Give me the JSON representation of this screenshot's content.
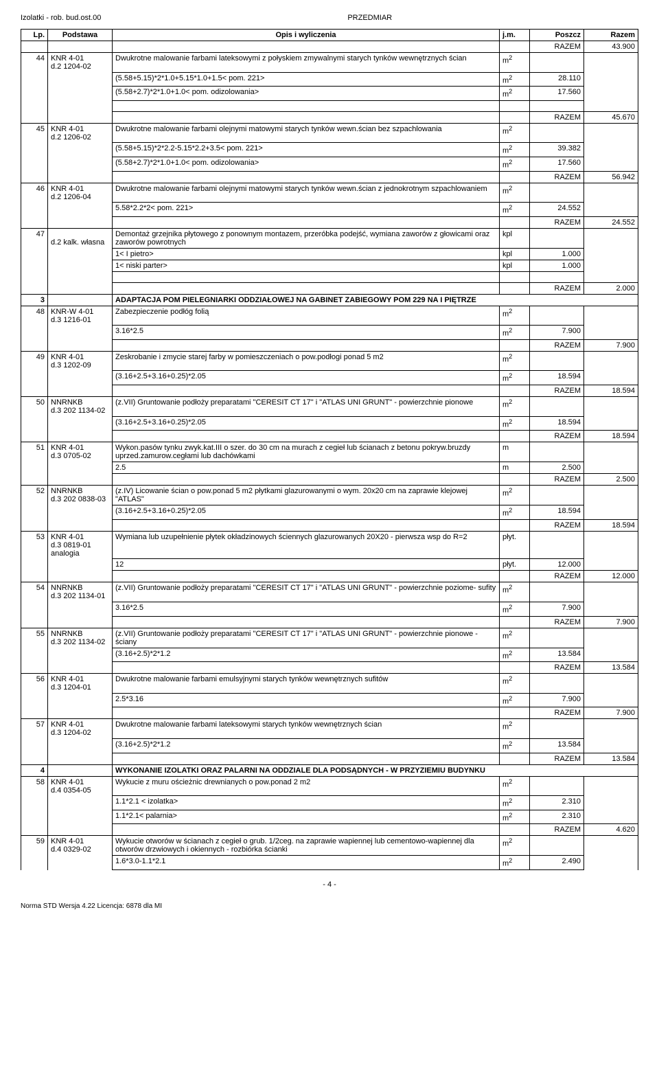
{
  "doc_header_left": "Izolatki - rob. bud.ost.00",
  "doc_header_center": "PRZEDMIAR",
  "columns": {
    "lp": "Lp.",
    "podstawa": "Podstawa",
    "opis": "Opis i wyliczenia",
    "jm": "j.m.",
    "poszcz": "Poszcz",
    "razem": "Razem"
  },
  "razem_label": "RAZEM",
  "rows": [
    {
      "type": "razem",
      "value": "43.900"
    },
    {
      "type": "item",
      "lp": "44",
      "pod1": "KNR 4-01",
      "pod2": "d.2 1204-02",
      "opis": "Dwukrotne malowanie farbami lateksowymi z połyskiem zmywalnymi starych tynków wewnętrznych ścian",
      "jm": "m2",
      "poszcz": ""
    },
    {
      "type": "calc",
      "opis": "(5.58+5.15)*2*1.0+5.15*1.0+1.5< pom. 221>",
      "jm": "m2",
      "poszcz": "28.110"
    },
    {
      "type": "calc",
      "opis": "(5.58+2.7)*2*1.0+1.0< pom. odizolowania>",
      "jm": "m2",
      "poszcz": "17.560"
    },
    {
      "type": "spacer"
    },
    {
      "type": "razem",
      "value": "45.670"
    },
    {
      "type": "item",
      "lp": "45",
      "pod1": "KNR 4-01",
      "pod2": "d.2 1206-02",
      "opis": "Dwukrotne malowanie farbami olejnymi  matowymi starych tynków wewn.ścian bez szpachlowania",
      "jm": "m2",
      "poszcz": ""
    },
    {
      "type": "calc",
      "opis": "(5.58+5.15)*2*2.2-5.15*2.2+3.5< pom. 221>",
      "jm": "m2",
      "poszcz": "39.382"
    },
    {
      "type": "calc",
      "opis": "(5.58+2.7)*2*1.0+1.0< pom. odizolowania>",
      "jm": "m2",
      "poszcz": "17.560"
    },
    {
      "type": "razem",
      "value": "56.942"
    },
    {
      "type": "item",
      "lp": "46",
      "pod1": "KNR 4-01",
      "pod2": "d.2 1206-04",
      "opis": "Dwukrotne malowanie farbami olejnymi matowymi starych tynków wewn.ścian z jednokrotnym szpachlowaniem",
      "jm": "m2",
      "poszcz": ""
    },
    {
      "type": "calc",
      "opis": "5.58*2.2*2< pom. 221>",
      "jm": "m2",
      "poszcz": "24.552"
    },
    {
      "type": "razem",
      "value": "24.552"
    },
    {
      "type": "item",
      "lp": "47",
      "pod1": "",
      "pod2": "d.2 kalk. własna",
      "opis": "Demontaż grzejnika płytowego z ponownym montazem, przeróbka podejść, wymiana zaworów z głowicami oraz zaworów powrotnych",
      "jm": "kpl",
      "poszcz": ""
    },
    {
      "type": "calc",
      "opis": "1< I pietro>",
      "jm": "kpl",
      "poszcz": "1.000"
    },
    {
      "type": "calc",
      "opis": "1< niski parter>",
      "jm": "kpl",
      "poszcz": "1.000"
    },
    {
      "type": "spacer"
    },
    {
      "type": "razem",
      "value": "2.000"
    },
    {
      "type": "section",
      "lp": "3",
      "opis": "ADAPTACJA POM PIELEGNIARKI ODDZIAŁOWEJ NA GABINET ZABIEGOWY POM 229 NA I PIĘTRZE"
    },
    {
      "type": "item",
      "lp": "48",
      "pod1": "KNR-W 4-01",
      "pod2": "d.3 1216-01",
      "opis": "Zabezpieczenie podłóg folią",
      "jm": "m2",
      "poszcz": ""
    },
    {
      "type": "calc",
      "opis": "3.16*2.5",
      "jm": "m2",
      "poszcz": "7.900"
    },
    {
      "type": "razem",
      "value": "7.900"
    },
    {
      "type": "item",
      "lp": "49",
      "pod1": "KNR 4-01",
      "pod2": "d.3 1202-09",
      "opis": "Zeskrobanie i zmycie starej farby w pomieszczeniach o pow.podłogi ponad 5 m2",
      "jm": "m2",
      "poszcz": ""
    },
    {
      "type": "calc",
      "opis": "(3.16+2.5+3.16+0.25)*2.05",
      "jm": "m2",
      "poszcz": "18.594"
    },
    {
      "type": "razem",
      "value": "18.594"
    },
    {
      "type": "item",
      "lp": "50",
      "pod1": "NNRNKB",
      "pod2": "d.3 202 1134-02",
      "opis": "(z.VII) Gruntowanie podłoży preparatami \"CERESIT CT 17\" i \"ATLAS UNI GRUNT\" - powierzchnie pionowe",
      "jm": "m2",
      "poszcz": ""
    },
    {
      "type": "calc",
      "opis": "(3.16+2.5+3.16+0.25)*2.05",
      "jm": "m2",
      "poszcz": "18.594"
    },
    {
      "type": "razem",
      "value": "18.594"
    },
    {
      "type": "item",
      "lp": "51",
      "pod1": "KNR 4-01",
      "pod2": "d.3 0705-02",
      "opis": "Wykon.pasów tynku zwyk.kat.III o szer. do 30 cm na murach z cegieł lub ścianach z betonu pokryw.bruzdy uprzed.zamurow.cegłami lub dachówkami",
      "jm": "m",
      "poszcz": ""
    },
    {
      "type": "calc",
      "opis": "2.5",
      "jm": "m",
      "poszcz": "2.500"
    },
    {
      "type": "razem",
      "value": "2.500"
    },
    {
      "type": "item",
      "lp": "52",
      "pod1": "NNRNKB",
      "pod2": "d.3 202 0838-03",
      "opis": "(z.IV) Licowanie ścian o pow.ponad 5 m2 płytkami glazurowanymi o wym. 20x20 cm na zaprawie klejowej \"ATLAS\"",
      "jm": "m2",
      "poszcz": ""
    },
    {
      "type": "calc",
      "opis": "(3.16+2.5+3.16+0.25)*2.05",
      "jm": "m2",
      "poszcz": "18.594"
    },
    {
      "type": "razem",
      "value": "18.594"
    },
    {
      "type": "item",
      "lp": "53",
      "pod1": "KNR 4-01",
      "pod2": "d.3 0819-01 analogia",
      "opis": "Wymiana lub uzupełnienie płytek okładzinowych ściennych glazurowanych 20X20 - pierwsza wsp do R=2",
      "jm": "płyt.",
      "poszcz": ""
    },
    {
      "type": "calc",
      "opis": "12",
      "jm": "płyt.",
      "poszcz": "12.000"
    },
    {
      "type": "razem",
      "value": "12.000"
    },
    {
      "type": "item",
      "lp": "54",
      "pod1": "NNRNKB",
      "pod2": "d.3 202 1134-01",
      "opis": "(z.VII) Gruntowanie podłoży preparatami \"CERESIT CT 17\" i \"ATLAS UNI GRUNT\" - powierzchnie poziome- sufity",
      "jm": "m2",
      "poszcz": ""
    },
    {
      "type": "calc",
      "opis": "3.16*2.5",
      "jm": "m2",
      "poszcz": "7.900"
    },
    {
      "type": "razem",
      "value": "7.900"
    },
    {
      "type": "item",
      "lp": "55",
      "pod1": "NNRNKB",
      "pod2": "d.3 202 1134-02",
      "opis": "(z.VII) Gruntowanie podłoży preparatami \"CERESIT CT 17\" i \"ATLAS UNI GRUNT\" - powierzchnie pionowe - ściany",
      "jm": "m2",
      "poszcz": ""
    },
    {
      "type": "calc",
      "opis": "(3.16+2.5)*2*1.2",
      "jm": "m2",
      "poszcz": "13.584"
    },
    {
      "type": "razem",
      "value": "13.584"
    },
    {
      "type": "item",
      "lp": "56",
      "pod1": "KNR 4-01",
      "pod2": "d.3 1204-01",
      "opis": "Dwukrotne malowanie farbami emulsyjnymi starych tynków wewnętrznych sufitów",
      "jm": "m2",
      "poszcz": ""
    },
    {
      "type": "calc",
      "opis": "2.5*3.16",
      "jm": "m2",
      "poszcz": "7.900"
    },
    {
      "type": "razem",
      "value": "7.900"
    },
    {
      "type": "item",
      "lp": "57",
      "pod1": "KNR 4-01",
      "pod2": "d.3 1204-02",
      "opis": "Dwukrotne malowanie farbami lateksowymi starych tynków wewnętrznych ścian",
      "jm": "m2",
      "poszcz": ""
    },
    {
      "type": "calc",
      "opis": "(3.16+2.5)*2*1.2",
      "jm": "m2",
      "poszcz": "13.584"
    },
    {
      "type": "razem",
      "value": "13.584"
    },
    {
      "type": "section",
      "lp": "4",
      "opis": "WYKONANIE IZOLATKI ORAZ PALARNI NA ODDZIALE DLA PODSĄDNYCH - W PRZYZIEMIU BUDYNKU"
    },
    {
      "type": "item",
      "lp": "58",
      "pod1": "KNR 4-01",
      "pod2": "d.4 0354-05",
      "opis": "Wykucie z muru ościeżnic drewnianych o pow.ponad 2 m2",
      "jm": "m2",
      "poszcz": ""
    },
    {
      "type": "calc",
      "opis": "1.1*2.1 < izolatka>",
      "jm": "m2",
      "poszcz": "2.310"
    },
    {
      "type": "calc",
      "opis": "1.1*2.1< palarnia>",
      "jm": "m2",
      "poszcz": "2.310"
    },
    {
      "type": "razem",
      "value": "4.620"
    },
    {
      "type": "item",
      "lp": "59",
      "pod1": "KNR 4-01",
      "pod2": "d.4 0329-02",
      "opis": "Wykucie otworów w ścianach z cegieł o grub. 1/2ceg. na zaprawie wapiennej lub cementowo-wapiennej dla otworów drzwiowych i okiennych - rozbiórka ścianki",
      "jm": "m2",
      "poszcz": ""
    },
    {
      "type": "calc",
      "opis": "1.6*3.0-1.1*2.1",
      "jm": "m2",
      "poszcz": "2.490"
    }
  ],
  "page_number": "- 4 -",
  "footer_text": "Norma STD Wersja 4.22 Licencja: 6878 dla MI"
}
